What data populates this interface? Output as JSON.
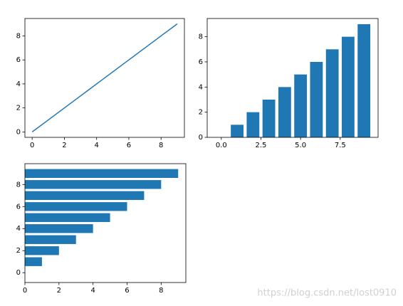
{
  "chart_data": [
    {
      "type": "line",
      "color": "#1f77b4",
      "x": [
        0,
        1,
        2,
        3,
        4,
        5,
        6,
        7,
        8,
        9
      ],
      "values": [
        0,
        1,
        2,
        3,
        4,
        5,
        6,
        7,
        8,
        9
      ],
      "xlim": [
        -0.45,
        9.45
      ],
      "ylim": [
        -0.45,
        9.45
      ],
      "xticks": [
        0,
        2,
        4,
        6,
        8
      ],
      "yticks": [
        0,
        2,
        4,
        6,
        8
      ]
    },
    {
      "type": "bar",
      "color": "#1f77b4",
      "x": [
        0,
        1,
        2,
        3,
        4,
        5,
        6,
        7,
        8,
        9
      ],
      "values": [
        0,
        1,
        2,
        3,
        4,
        5,
        6,
        7,
        8,
        9
      ],
      "xlim": [
        -0.89,
        9.89
      ],
      "ylim": [
        0,
        9.45
      ],
      "xticks": [
        {
          "value": 0,
          "label": "0.0"
        },
        {
          "value": 2.5,
          "label": "2.5"
        },
        {
          "value": 5,
          "label": "5.0"
        },
        {
          "value": 7.5,
          "label": "7.5"
        }
      ],
      "yticks": [
        0,
        2,
        4,
        6,
        8
      ]
    },
    {
      "type": "barh",
      "color": "#1f77b4",
      "y": [
        0,
        1,
        2,
        3,
        4,
        5,
        6,
        7,
        8,
        9
      ],
      "values": [
        0,
        1,
        2,
        3,
        4,
        5,
        6,
        7,
        8,
        9
      ],
      "xlim": [
        0,
        9.45
      ],
      "ylim": [
        -0.89,
        9.89
      ],
      "xticks": [
        0,
        2,
        4,
        6,
        8
      ],
      "yticks": [
        0,
        2,
        4,
        6,
        8
      ]
    }
  ],
  "watermark": "https://blog.csdn.net/lost0910"
}
